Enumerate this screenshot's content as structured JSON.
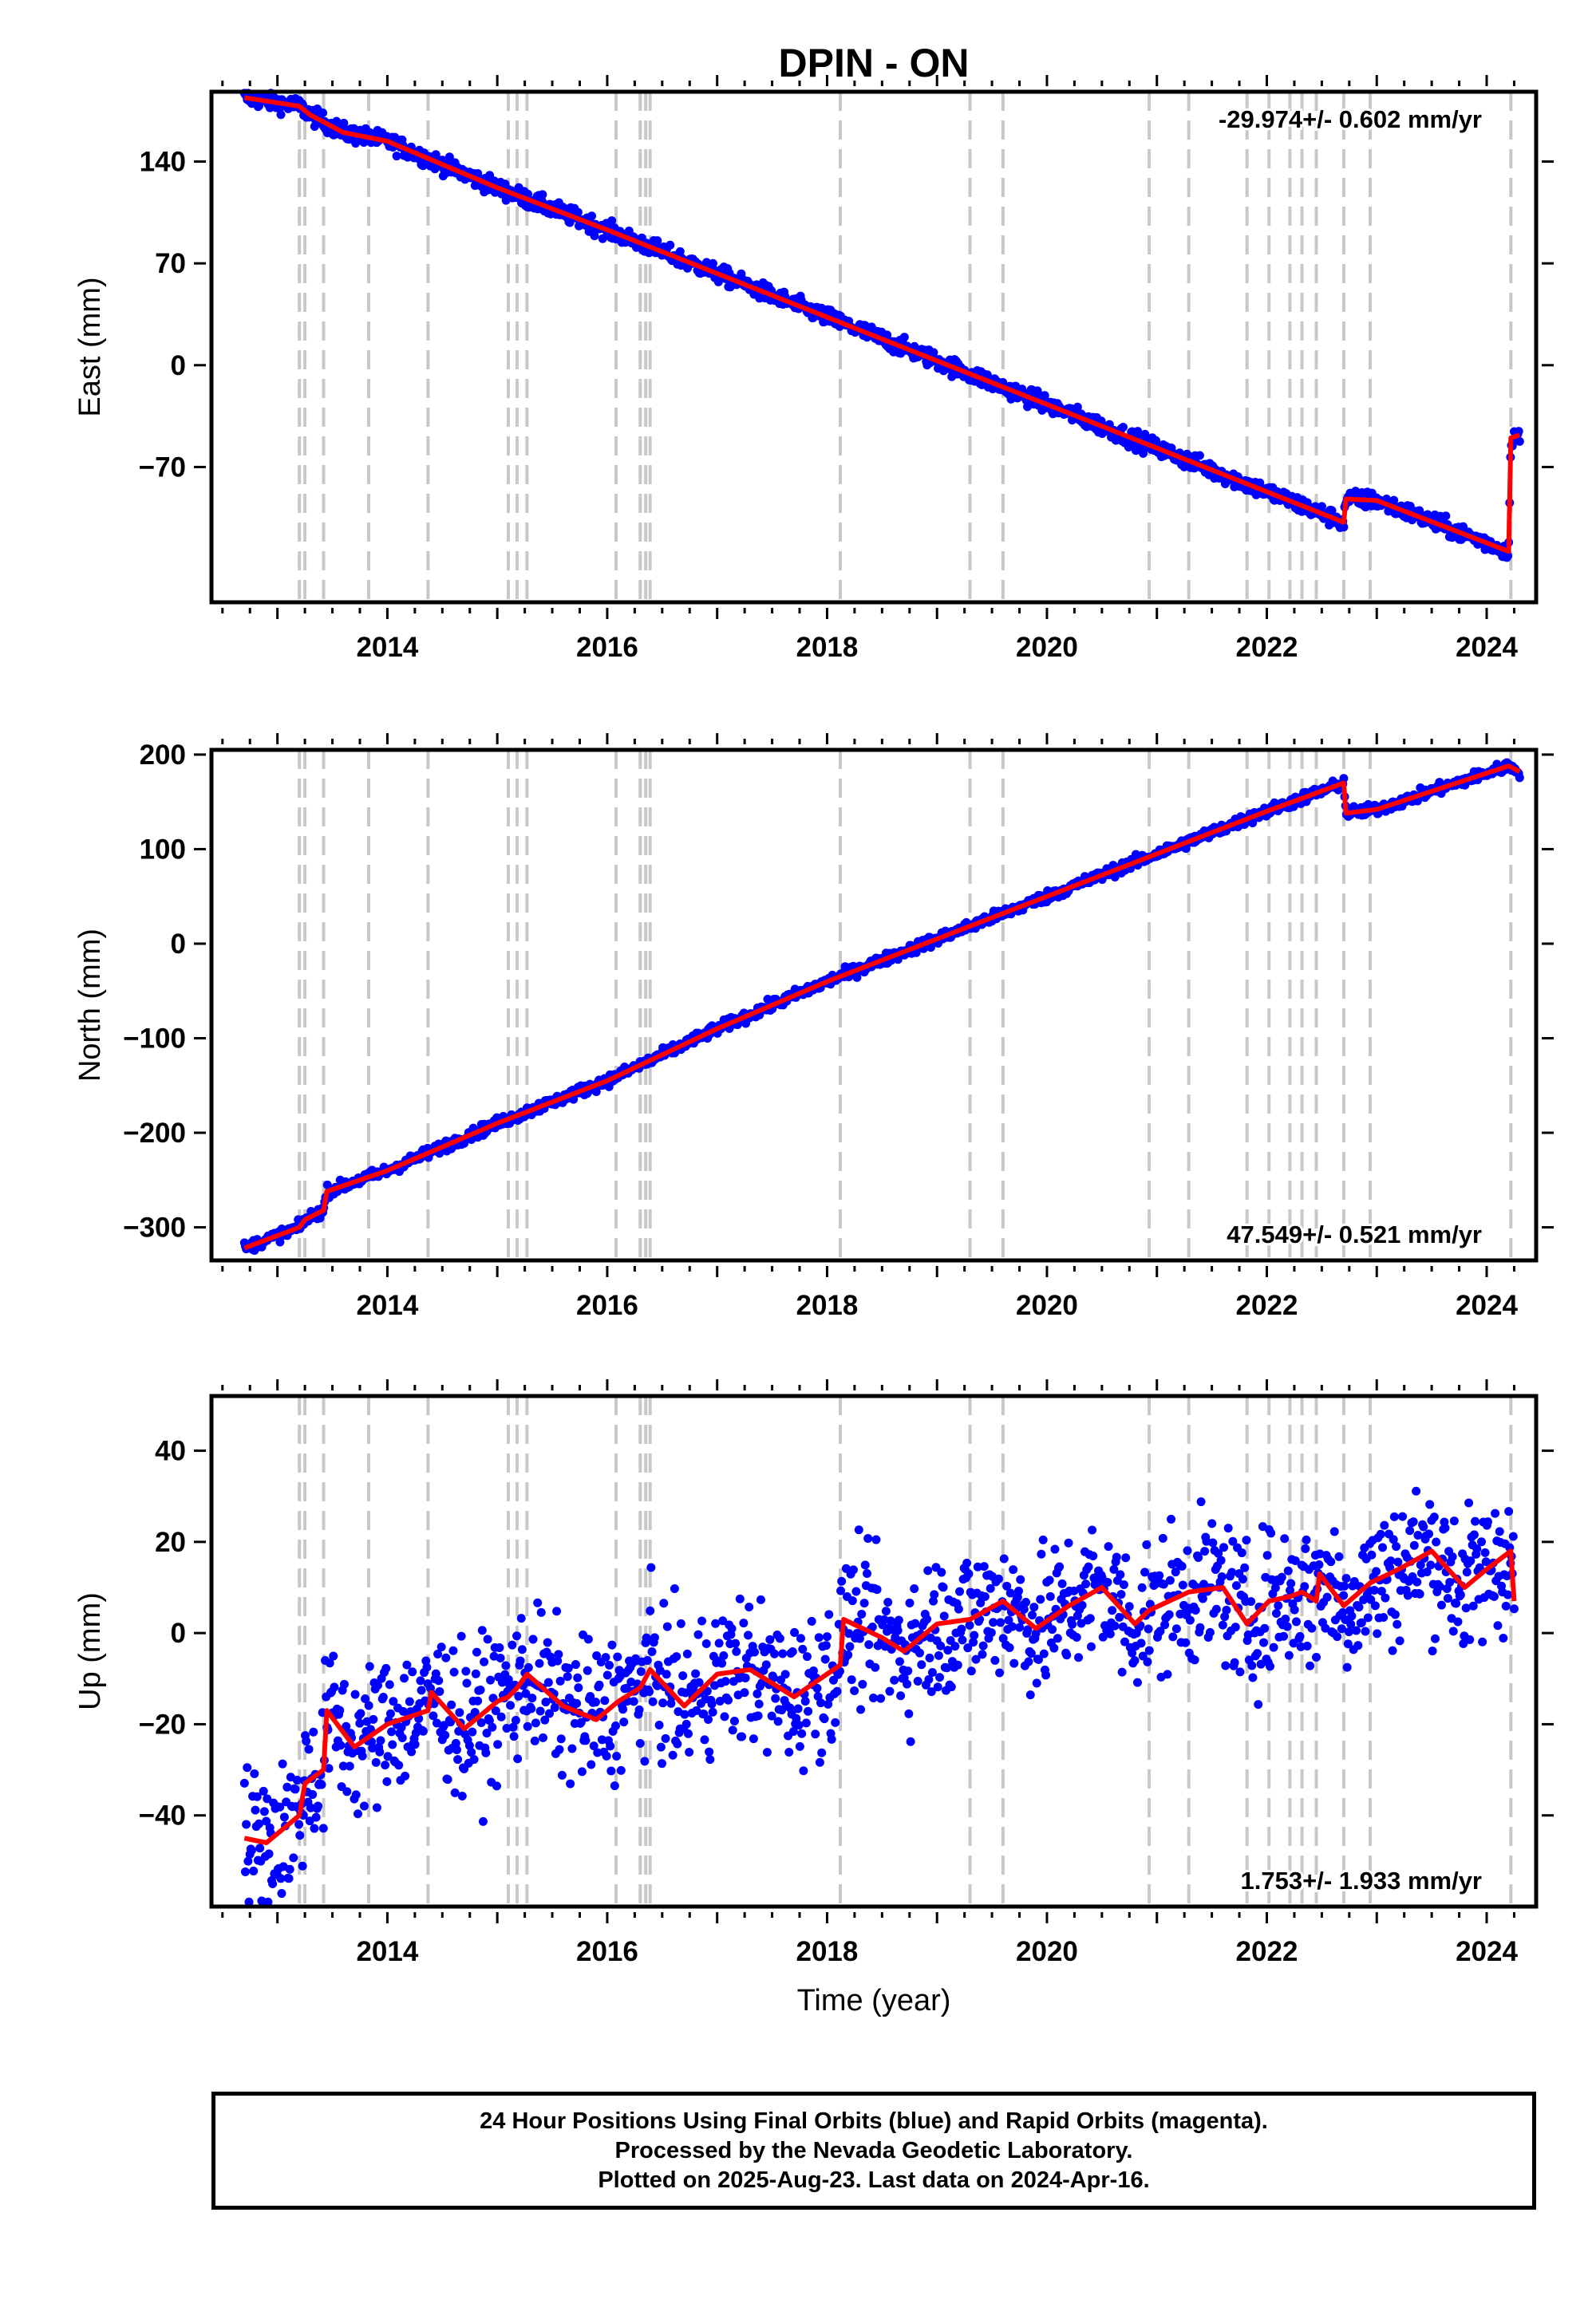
{
  "title": "DPIN - ON",
  "footer": {
    "line1": "24 Hour Positions Using Final Orbits (blue) and Rapid Orbits (magenta).",
    "line2": "Processed by the Nevada Geodetic Laboratory.",
    "line3": "Plotted on 2025-Aug-23. Last data on 2024-Apr-16."
  },
  "colors": {
    "data_points": "#0000ff",
    "model_line": "#ff0000",
    "event_lines": "#c8c8c8"
  },
  "chart_data": [
    {
      "type": "scatter",
      "ylabel": "East (mm)",
      "xlabel": "",
      "rate_label": "-29.974+/- 0.602 mm/yr",
      "rate_label_position": "top-right",
      "xlim": [
        2012.4,
        2024.45
      ],
      "ylim": [
        -163,
        188
      ],
      "xticks": [
        2014,
        2016,
        2018,
        2020,
        2022,
        2024
      ],
      "yticks": [
        -70,
        0,
        70,
        140
      ],
      "grid": false,
      "offset_lines": [
        2013.2,
        2013.25,
        2013.42,
        2013.83,
        2014.37,
        2015.1,
        2015.18,
        2015.27,
        2016.08,
        2016.3,
        2016.35,
        2016.39,
        2018.12,
        2019.3,
        2019.6,
        2020.93,
        2021.29,
        2021.82,
        2022.02,
        2022.21,
        2022.32,
        2022.45,
        2022.7,
        2022.94,
        2024.22
      ],
      "model": [
        [
          2012.7,
          184
        ],
        [
          2013.2,
          178
        ],
        [
          2013.3,
          172
        ],
        [
          2013.6,
          160
        ],
        [
          2014.0,
          154
        ],
        [
          2015.0,
          122
        ],
        [
          2016.0,
          93
        ],
        [
          2017.0,
          63
        ],
        [
          2018.0,
          33
        ],
        [
          2019.0,
          3
        ],
        [
          2020.0,
          -27
        ],
        [
          2021.0,
          -57
        ],
        [
          2022.0,
          -87
        ],
        [
          2022.7,
          -108
        ],
        [
          2022.72,
          -92
        ],
        [
          2023.0,
          -93
        ],
        [
          2024.2,
          -128
        ],
        [
          2024.22,
          -50
        ],
        [
          2024.3,
          -48
        ]
      ],
      "scatter_noise": 3,
      "series": [
        {
          "name": "",
          "values": []
        }
      ]
    },
    {
      "type": "scatter",
      "ylabel": "North (mm)",
      "xlabel": "",
      "rate_label": "47.549+/- 0.521 mm/yr",
      "rate_label_position": "bottom-right",
      "xlim": [
        2012.4,
        2024.45
      ],
      "ylim": [
        -335,
        205
      ],
      "xticks": [
        2014,
        2016,
        2018,
        2020,
        2022,
        2024
      ],
      "yticks": [
        -300,
        -200,
        -100,
        0,
        100,
        200
      ],
      "grid": false,
      "offset_lines": [
        2013.2,
        2013.25,
        2013.42,
        2013.83,
        2014.37,
        2015.1,
        2015.18,
        2015.27,
        2016.08,
        2016.3,
        2016.35,
        2016.39,
        2018.12,
        2019.3,
        2019.6,
        2020.93,
        2021.29,
        2021.82,
        2022.02,
        2022.21,
        2022.32,
        2022.45,
        2022.7,
        2022.94,
        2024.22
      ],
      "model": [
        [
          2012.7,
          -322
        ],
        [
          2013.2,
          -300
        ],
        [
          2013.25,
          -292
        ],
        [
          2013.42,
          -282
        ],
        [
          2013.45,
          -262
        ],
        [
          2014.0,
          -240
        ],
        [
          2015.0,
          -190
        ],
        [
          2016.0,
          -145
        ],
        [
          2017.0,
          -90
        ],
        [
          2018.0,
          -40
        ],
        [
          2019.0,
          5
        ],
        [
          2020.0,
          50
        ],
        [
          2021.0,
          95
        ],
        [
          2022.0,
          140
        ],
        [
          2022.7,
          170
        ],
        [
          2022.72,
          138
        ],
        [
          2023.0,
          142
        ],
        [
          2024.2,
          188
        ],
        [
          2024.3,
          182
        ]
      ],
      "scatter_noise": 3,
      "series": [
        {
          "name": "",
          "values": []
        }
      ]
    },
    {
      "type": "scatter",
      "ylabel": "Up (mm)",
      "xlabel": "Time (year)",
      "rate_label": "1.753+/- 1.933 mm/yr",
      "rate_label_position": "bottom-right",
      "xlim": [
        2012.4,
        2024.45
      ],
      "ylim": [
        -60,
        52
      ],
      "xticks": [
        2014,
        2016,
        2018,
        2020,
        2022,
        2024
      ],
      "yticks": [
        -40,
        -20,
        0,
        20,
        40
      ],
      "grid": false,
      "offset_lines": [
        2013.2,
        2013.25,
        2013.42,
        2013.83,
        2014.37,
        2015.1,
        2015.18,
        2015.27,
        2016.08,
        2016.3,
        2016.35,
        2016.39,
        2018.12,
        2019.3,
        2019.6,
        2020.93,
        2021.29,
        2021.82,
        2022.02,
        2022.21,
        2022.32,
        2022.45,
        2022.7,
        2022.94,
        2024.22
      ],
      "model": [
        [
          2012.7,
          -45
        ],
        [
          2012.9,
          -46
        ],
        [
          2013.2,
          -40
        ],
        [
          2013.25,
          -33
        ],
        [
          2013.42,
          -30
        ],
        [
          2013.45,
          -17
        ],
        [
          2013.7,
          -25
        ],
        [
          2014.0,
          -20
        ],
        [
          2014.37,
          -17
        ],
        [
          2014.4,
          -13
        ],
        [
          2014.7,
          -21
        ],
        [
          2015.0,
          -15
        ],
        [
          2015.1,
          -14
        ],
        [
          2015.18,
          -12
        ],
        [
          2015.27,
          -9
        ],
        [
          2015.6,
          -16
        ],
        [
          2015.9,
          -19
        ],
        [
          2016.1,
          -15
        ],
        [
          2016.3,
          -12
        ],
        [
          2016.39,
          -8
        ],
        [
          2016.7,
          -16
        ],
        [
          2017.0,
          -9
        ],
        [
          2017.3,
          -8
        ],
        [
          2017.7,
          -14
        ],
        [
          2018.12,
          -7
        ],
        [
          2018.15,
          3
        ],
        [
          2018.5,
          -1
        ],
        [
          2018.7,
          -4
        ],
        [
          2019.0,
          2
        ],
        [
          2019.3,
          3
        ],
        [
          2019.6,
          7
        ],
        [
          2019.9,
          1
        ],
        [
          2020.2,
          6
        ],
        [
          2020.5,
          10
        ],
        [
          2020.8,
          2
        ],
        [
          2020.93,
          5
        ],
        [
          2021.29,
          9
        ],
        [
          2021.6,
          10
        ],
        [
          2021.82,
          2
        ],
        [
          2022.02,
          7
        ],
        [
          2022.21,
          8
        ],
        [
          2022.32,
          9
        ],
        [
          2022.45,
          7
        ],
        [
          2022.48,
          13
        ],
        [
          2022.7,
          6
        ],
        [
          2022.94,
          11
        ],
        [
          2023.2,
          14
        ],
        [
          2023.5,
          18
        ],
        [
          2023.8,
          10
        ],
        [
          2024.0,
          14
        ],
        [
          2024.22,
          18
        ],
        [
          2024.25,
          7
        ]
      ],
      "scatter_noise": 8,
      "series": [
        {
          "name": "",
          "values": []
        }
      ]
    }
  ]
}
